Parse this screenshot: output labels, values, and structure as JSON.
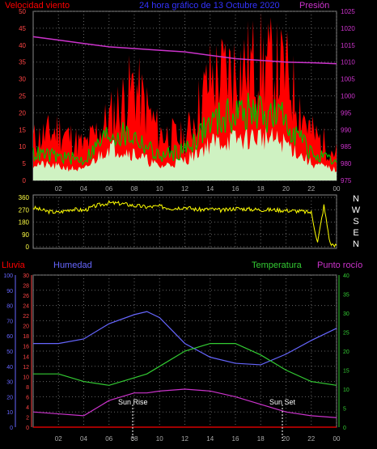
{
  "header": {
    "wind_label": "Velocidad viento",
    "title": "24 hora gráfico de   13 Octubre 2020",
    "pressure_label": "Presión"
  },
  "colors": {
    "wind_gust": "#ff0000",
    "wind_avg": "#00c000",
    "wind_low": "#ccffcc",
    "pressure": "#cc33cc",
    "direction": "#ffff00",
    "rain": "#ff0000",
    "humidity": "#6666ff",
    "temperature": "#33cc33",
    "dewpoint": "#cc33cc",
    "grid": "#666666",
    "frame": "#888888"
  },
  "panel3_labels": {
    "rain": "Lluvia",
    "humidity": "Humedad",
    "temperature": "Temperatura",
    "dewpoint": "Punto rocío",
    "sunrise": "Sun Rise",
    "sunset": "Sun Set"
  },
  "compass": [
    "N",
    "W",
    "S",
    "E",
    "N"
  ],
  "chart_data": [
    {
      "type": "line",
      "title": "24 hora gráfico de   13 Octubre 2020",
      "x_ticks": [
        "02",
        "04",
        "06",
        "08",
        "10",
        "12",
        "14",
        "16",
        "18",
        "20",
        "22",
        "00"
      ],
      "y_left_ticks": [
        "0",
        "5",
        "10",
        "15",
        "20",
        "25",
        "30",
        "35",
        "40",
        "45",
        "50"
      ],
      "y_left_range": [
        0,
        50
      ],
      "y_right_ticks": [
        "975",
        "980",
        "985",
        "990",
        "995",
        "1000",
        "1005",
        "1010",
        "1015",
        "1020",
        "1025"
      ],
      "y_right_range": [
        975,
        1025
      ],
      "grid": true,
      "x_hours": [
        0,
        2,
        4,
        6,
        8,
        10,
        12,
        14,
        16,
        18,
        20,
        22,
        24
      ],
      "series": [
        {
          "name": "Velocidad viento",
          "values": [
            12,
            15,
            10,
            18,
            28,
            14,
            12,
            30,
            33,
            35,
            32,
            14,
            8
          ]
        },
        {
          "values": [
            8,
            7,
            6,
            14,
            13,
            7,
            9,
            17,
            20,
            20,
            18,
            8,
            5
          ]
        },
        {
          "values": [
            5,
            4,
            3,
            10,
            8,
            4,
            6,
            11,
            12,
            13,
            11,
            5,
            3
          ]
        },
        {
          "name": "Presión",
          "values": [
            1017.5,
            1016.5,
            1015.5,
            1014.5,
            1014,
            1013.5,
            1013,
            1012,
            1011,
            1010.5,
            1010,
            1009.8,
            1009.5
          ]
        }
      ]
    },
    {
      "type": "line",
      "y_ticks": [
        "0",
        "90",
        "180",
        "270",
        "360"
      ],
      "y_range": [
        0,
        360
      ],
      "x_hours": [
        0,
        1,
        2,
        3,
        4,
        5,
        6,
        7,
        8,
        9,
        10,
        11,
        12,
        13,
        14,
        15,
        16,
        17,
        18,
        19,
        20,
        21,
        22,
        22.5,
        23,
        23.5,
        24
      ],
      "series": [
        {
          "values": [
            285,
            260,
            250,
            275,
            265,
            300,
            320,
            315,
            300,
            290,
            295,
            280,
            290,
            270,
            275,
            265,
            280,
            275,
            270,
            270,
            265,
            260,
            250,
            30,
            300,
            20,
            10
          ]
        }
      ]
    },
    {
      "type": "line",
      "x_ticks": [
        "02",
        "04",
        "06",
        "08",
        "10",
        "12",
        "14",
        "16",
        "18",
        "20",
        "22",
        "00"
      ],
      "y_humidity_ticks": [
        "0",
        "10",
        "20",
        "30",
        "40",
        "50",
        "60",
        "70",
        "80",
        "90",
        "100"
      ],
      "y_rain_ticks": [
        "0",
        "2",
        "4",
        "6",
        "8",
        "10",
        "12",
        "14",
        "16",
        "18",
        "20",
        "22",
        "24",
        "26",
        "28",
        "30"
      ],
      "y_temp_ticks": [
        "0",
        "5",
        "10",
        "15",
        "20",
        "25",
        "30",
        "35",
        "40"
      ],
      "humidity_range": [
        0,
        100
      ],
      "temp_range": [
        0,
        40
      ],
      "x_hours": [
        0,
        2,
        4,
        6,
        8,
        9,
        10,
        12,
        14,
        16,
        18,
        20,
        22,
        24
      ],
      "series": [
        {
          "name": "Lluvia",
          "values": [
            0,
            0,
            0,
            0,
            0,
            0,
            0,
            0,
            0,
            0,
            0,
            0,
            0,
            0
          ]
        },
        {
          "name": "Humedad",
          "values": [
            55,
            55,
            58,
            68,
            74,
            76,
            72,
            55,
            46,
            42,
            41,
            48,
            57,
            65
          ]
        },
        {
          "name": "Temperatura",
          "values": [
            14,
            14,
            12,
            11,
            13,
            14,
            16,
            20,
            22,
            22,
            19,
            15,
            12,
            11
          ]
        },
        {
          "name": "Punto rocío",
          "values": [
            4,
            3.5,
            3,
            7,
            9,
            9,
            9.5,
            10,
            9.5,
            8,
            6,
            4,
            3,
            2.5
          ]
        }
      ]
    }
  ]
}
